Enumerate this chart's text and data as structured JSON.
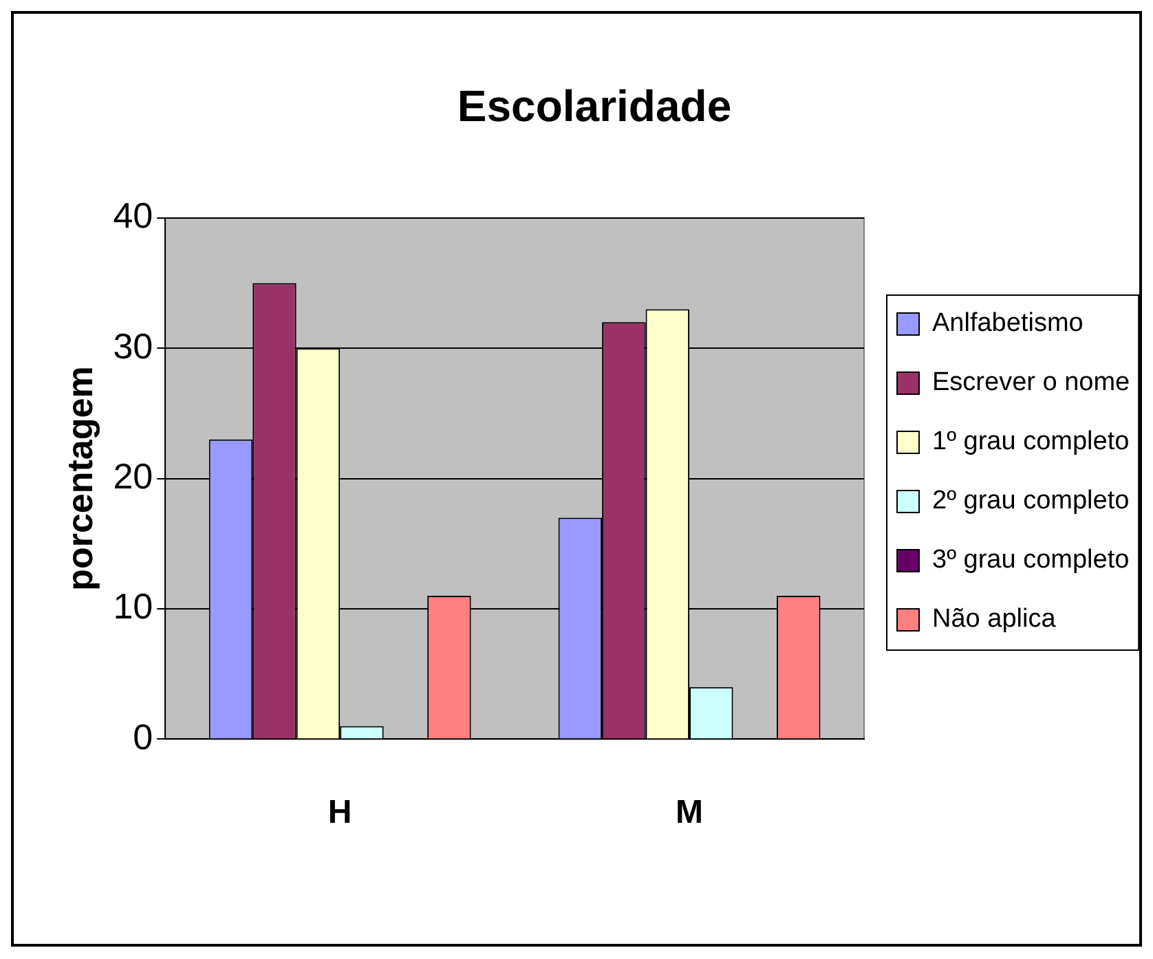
{
  "chart_data": {
    "type": "bar",
    "title": "Escolaridade",
    "ylabel": "porcentagem",
    "categories": [
      "H",
      "M"
    ],
    "series": [
      {
        "name": "Anlfabetismo",
        "color": "#9999ff",
        "values": [
          23,
          17
        ]
      },
      {
        "name": "Escrever o nome",
        "color": "#993366",
        "values": [
          35,
          32
        ]
      },
      {
        "name": "1º grau completo",
        "color": "#ffffcc",
        "values": [
          30,
          33
        ]
      },
      {
        "name": "2º grau completo",
        "color": "#ccffff",
        "values": [
          1,
          4
        ]
      },
      {
        "name": "3º grau completo",
        "color": "#660066",
        "values": [
          0,
          0
        ]
      },
      {
        "name": "Não aplica",
        "color": "#ff8080",
        "values": [
          11,
          11
        ]
      }
    ],
    "ylim": [
      0,
      40
    ],
    "yticks": [
      0,
      10,
      20,
      30,
      40
    ],
    "grid": "y",
    "legend": "right"
  }
}
